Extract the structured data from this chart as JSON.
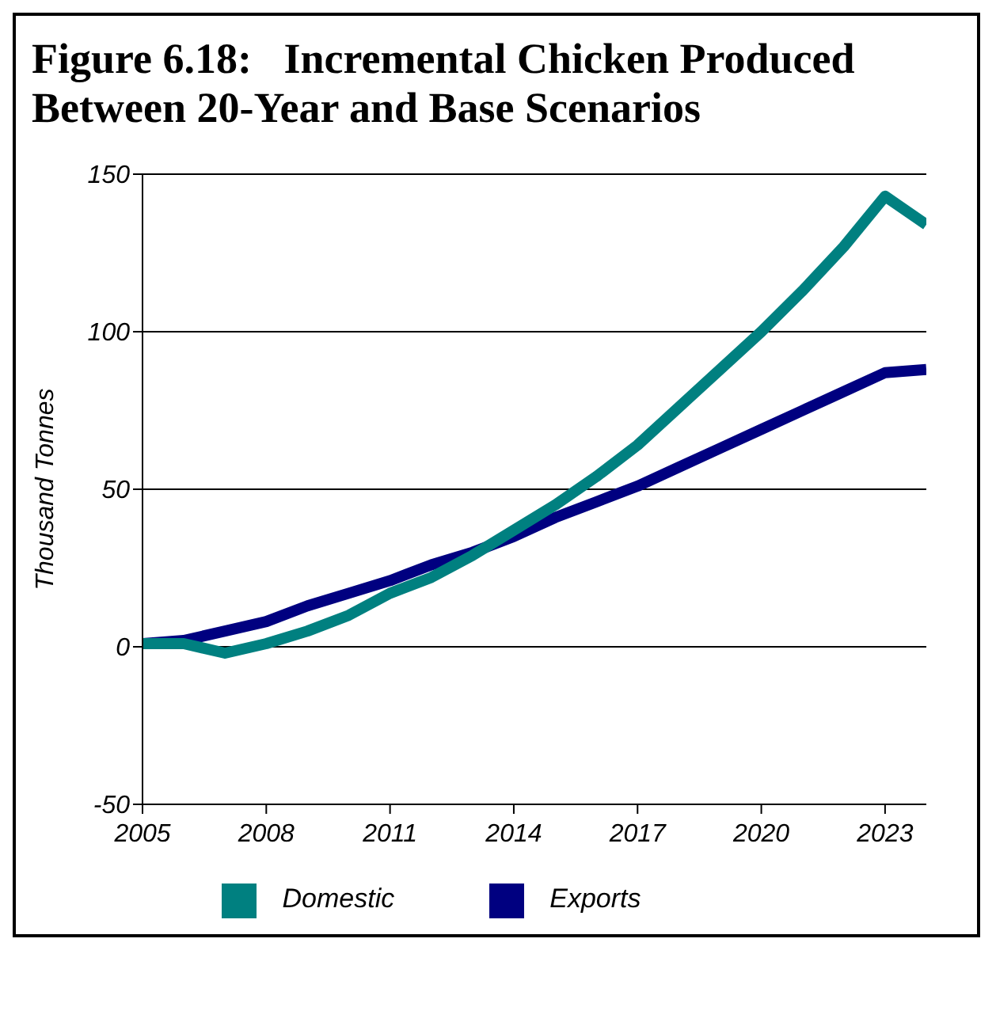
{
  "chart_data": {
    "type": "line",
    "title": "Figure 6.18:   Incremental Chicken Produced Between 20-Year and Base Scenarios",
    "ylabel": "Thousand Tonnes",
    "x": [
      2005,
      2006,
      2007,
      2008,
      2009,
      2010,
      2011,
      2012,
      2013,
      2014,
      2015,
      2016,
      2017,
      2018,
      2019,
      2020,
      2021,
      2022,
      2023,
      2024
    ],
    "series": [
      {
        "name": "Exports",
        "color": "#000080",
        "values": [
          1,
          2,
          5,
          8,
          13,
          17,
          21,
          26,
          30,
          35,
          41,
          46,
          51,
          57,
          63,
          69,
          75,
          81,
          87,
          88
        ]
      },
      {
        "name": "Domestic",
        "color": "#008080",
        "values": [
          1,
          1,
          -2,
          1,
          5,
          10,
          17,
          22,
          29,
          37,
          45,
          54,
          64,
          76,
          88,
          100,
          113,
          127,
          143,
          134
        ]
      }
    ],
    "xlim": [
      2005,
      2024
    ],
    "xticks": [
      2005,
      2008,
      2011,
      2014,
      2017,
      2020,
      2023
    ],
    "ylim": [
      -50,
      150
    ],
    "yticks": [
      -50,
      0,
      50,
      100,
      150
    ],
    "grid": "y",
    "legend": "bottom",
    "marker": "none",
    "line_style": "solid"
  }
}
